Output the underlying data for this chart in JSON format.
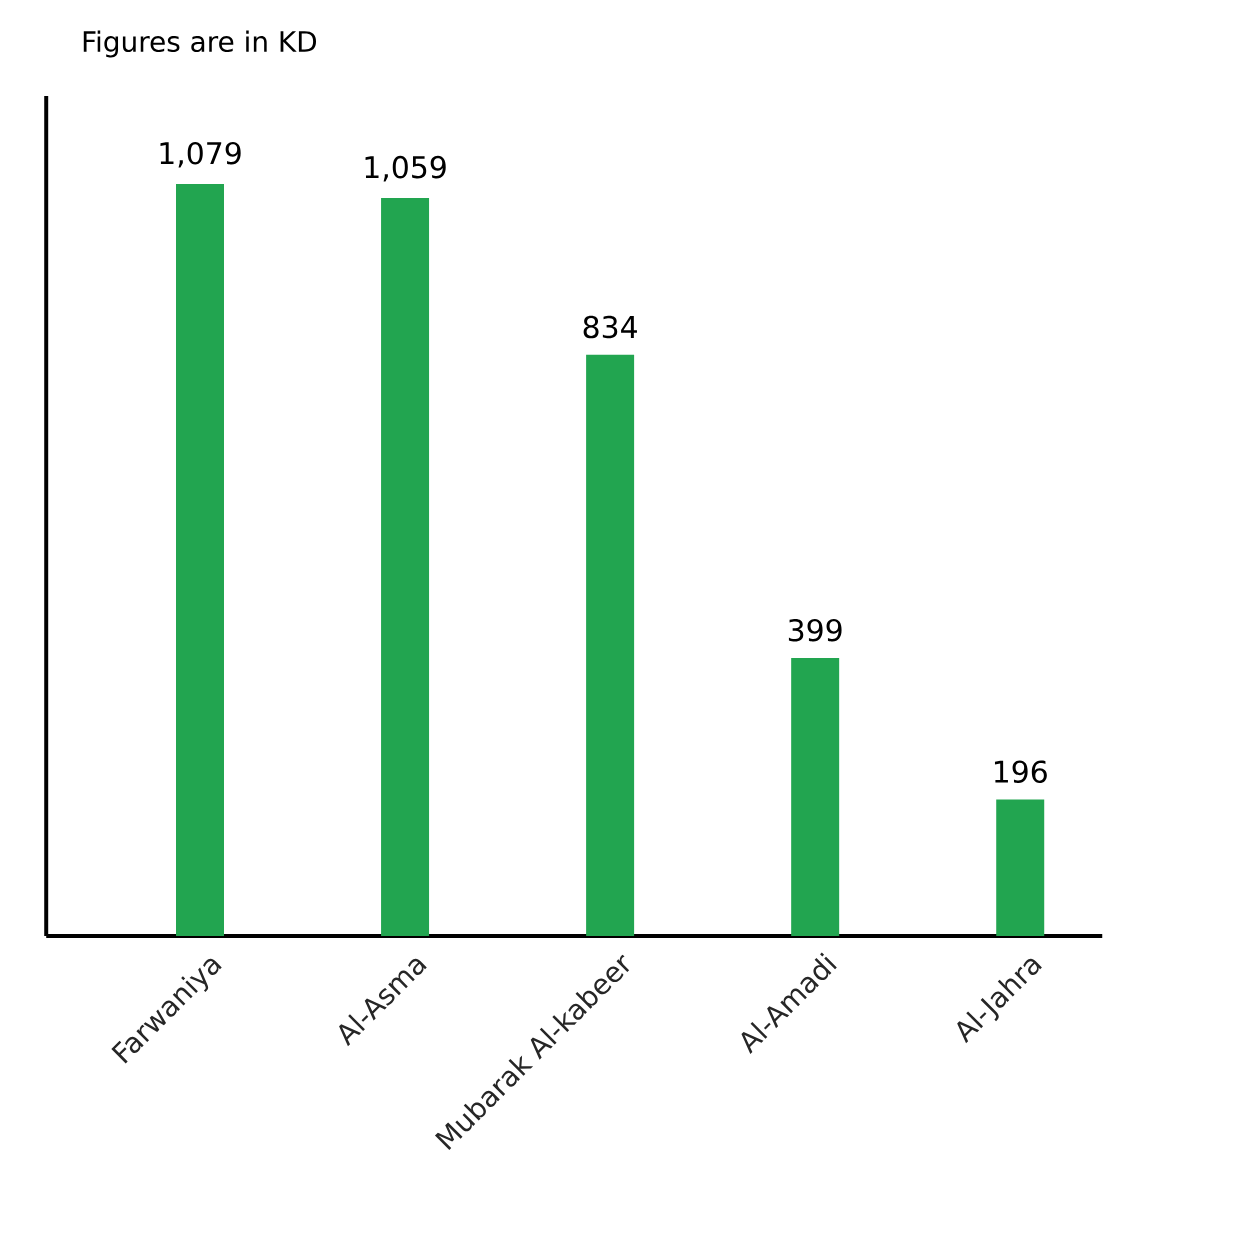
{
  "chart_data": {
    "type": "bar",
    "ylabel": "Figures are in KD",
    "categories": [
      "Farwaniya",
      "Al-Asma",
      "Mubarak Al-kabeer",
      "Al-Amadi",
      "Al-Jahra"
    ],
    "values": [
      1079,
      1059,
      834,
      399,
      196
    ],
    "value_labels": [
      "1,079",
      "1,059",
      "834",
      "399",
      "196"
    ],
    "color": "#22a550",
    "tick_labels": "x"
  }
}
